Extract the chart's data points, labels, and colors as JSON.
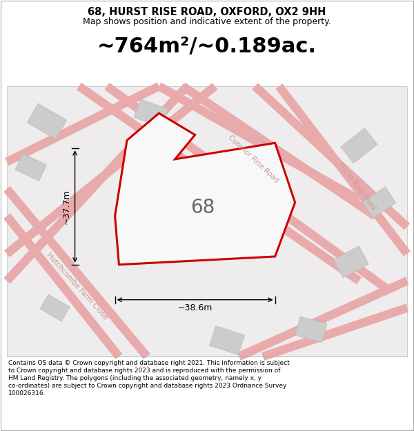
{
  "title_line1": "68, HURST RISE ROAD, OXFORD, OX2 9HH",
  "title_line2": "Map shows position and indicative extent of the property.",
  "area_text": "~764m²/~0.189ac.",
  "property_number": "68",
  "dim_width": "~38.6m",
  "dim_height": "~37.7m",
  "footer_lines": [
    "Contains OS data © Crown copyright and database right 2021. This information is subject",
    "to Crown copyright and database rights 2023 and is reproduced with the permission of",
    "HM Land Registry. The polygons (including the associated geometry, namely x, y",
    "co-ordinates) are subject to Crown copyright and database rights 2023 Ordnance Survey",
    "100026316."
  ],
  "road_color": "#e8aaaa",
  "building_color": "#cccccc",
  "building_edge": "#bbbbbb",
  "property_fill": "#f8f8f8",
  "property_stroke": "#cc0000",
  "road_label_color": "#cc9999",
  "map_bg": "#eeecec"
}
